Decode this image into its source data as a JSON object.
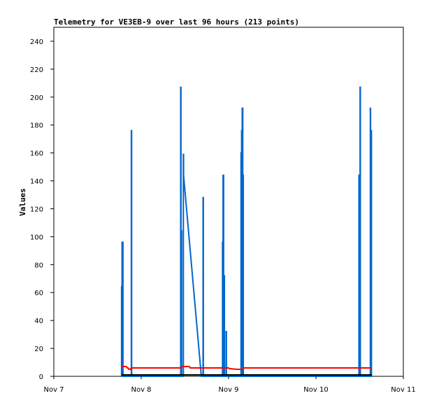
{
  "chart_data": {
    "type": "line",
    "title": "Telemetry for VE3EB-9 over last 96 hours (213 points)",
    "xlabel": "",
    "ylabel": "Values",
    "x_domain": [
      "Nov 7",
      "Nov 11"
    ],
    "x_ticks": [
      "Nov 7",
      "Nov 8",
      "Nov 9",
      "Nov 10",
      "Nov 11"
    ],
    "ylim": [
      0,
      250
    ],
    "y_ticks": [
      0,
      20,
      40,
      60,
      80,
      100,
      120,
      140,
      160,
      180,
      200,
      220,
      240
    ],
    "grid": false,
    "legend": "none",
    "series": [
      {
        "color": "#0066cc",
        "points": [
          [
            0.775,
            0
          ],
          [
            0.775,
            64
          ],
          [
            0.778,
            64
          ],
          [
            0.778,
            0
          ],
          [
            0.781,
            0
          ],
          [
            0.781,
            96
          ],
          [
            0.785,
            96
          ],
          [
            0.785,
            0
          ],
          [
            0.788,
            0
          ],
          [
            0.788,
            96
          ],
          [
            0.791,
            96
          ],
          [
            0.791,
            0
          ],
          [
            0.887,
            0
          ],
          [
            0.887,
            176
          ],
          [
            0.89,
            176
          ],
          [
            0.89,
            0
          ],
          [
            1.452,
            0
          ],
          [
            1.452,
            207
          ],
          [
            1.455,
            207
          ],
          [
            1.455,
            0
          ],
          [
            1.459,
            0
          ],
          [
            1.459,
            104
          ],
          [
            1.462,
            104
          ],
          [
            1.462,
            0
          ],
          [
            1.482,
            0
          ],
          [
            1.482,
            159
          ],
          [
            1.485,
            159
          ],
          [
            1.485,
            144
          ],
          [
            1.688,
            0
          ],
          [
            1.688,
            0
          ],
          [
            1.708,
            0
          ],
          [
            1.708,
            128
          ],
          [
            1.711,
            128
          ],
          [
            1.711,
            0
          ],
          [
            1.93,
            0
          ],
          [
            1.93,
            96
          ],
          [
            1.933,
            96
          ],
          [
            1.933,
            0
          ],
          [
            1.937,
            0
          ],
          [
            1.937,
            144
          ],
          [
            1.94,
            144
          ],
          [
            1.94,
            144
          ],
          [
            1.943,
            144
          ],
          [
            1.943,
            0
          ],
          [
            1.95,
            0
          ],
          [
            1.95,
            72
          ],
          [
            1.953,
            72
          ],
          [
            1.953,
            0
          ],
          [
            1.972,
            0
          ],
          [
            1.972,
            32
          ],
          [
            1.975,
            32
          ],
          [
            1.975,
            0
          ],
          [
            2.142,
            0
          ],
          [
            2.142,
            160
          ],
          [
            2.145,
            160
          ],
          [
            2.145,
            0
          ],
          [
            2.149,
            0
          ],
          [
            2.149,
            176
          ],
          [
            2.152,
            176
          ],
          [
            2.152,
            0
          ],
          [
            2.156,
            0
          ],
          [
            2.156,
            192
          ],
          [
            2.159,
            192
          ],
          [
            2.159,
            192
          ],
          [
            2.162,
            192
          ],
          [
            2.162,
            0
          ],
          [
            2.166,
            0
          ],
          [
            2.166,
            144
          ],
          [
            2.169,
            144
          ],
          [
            2.169,
            0
          ],
          [
            3.492,
            0
          ],
          [
            3.492,
            144
          ],
          [
            3.495,
            144
          ],
          [
            3.495,
            0
          ],
          [
            3.505,
            0
          ],
          [
            3.505,
            207
          ],
          [
            3.508,
            207
          ],
          [
            3.508,
            0
          ],
          [
            3.622,
            0
          ],
          [
            3.622,
            192
          ],
          [
            3.625,
            192
          ],
          [
            3.625,
            0
          ],
          [
            3.632,
            0
          ],
          [
            3.632,
            176
          ],
          [
            3.635,
            176
          ],
          [
            3.635,
            0
          ]
        ]
      },
      {
        "color": "#ff0000",
        "points": [
          [
            0.775,
            7
          ],
          [
            0.83,
            7
          ],
          [
            0.84,
            6
          ],
          [
            0.85,
            6
          ],
          [
            0.86,
            5
          ],
          [
            0.875,
            5
          ],
          [
            0.885,
            6
          ],
          [
            1.45,
            6
          ],
          [
            1.47,
            7
          ],
          [
            1.55,
            7
          ],
          [
            1.56,
            6
          ],
          [
            1.94,
            6
          ],
          [
            1.95,
            6
          ],
          [
            2.0,
            6
          ],
          [
            2.01,
            5.5
          ],
          [
            2.1,
            5
          ],
          [
            2.16,
            5
          ],
          [
            2.17,
            6
          ],
          [
            3.6,
            6
          ],
          [
            3.64,
            6
          ]
        ]
      },
      {
        "color": "#000000",
        "points": [
          [
            0.775,
            1
          ],
          [
            3.64,
            1
          ]
        ]
      }
    ]
  }
}
